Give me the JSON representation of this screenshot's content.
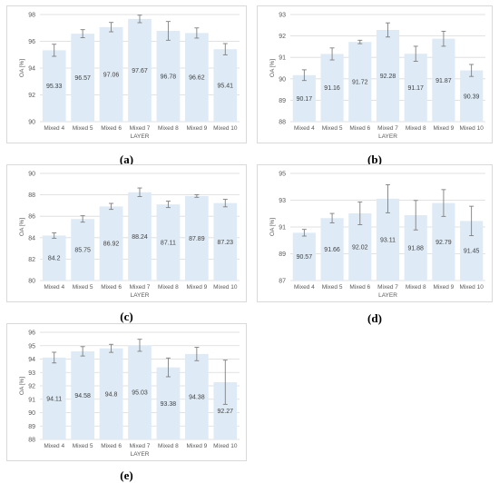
{
  "chart_data": [
    {
      "type": "bar",
      "panel_label": "(a)",
      "categories": [
        "Mixed 4",
        "Mixed 5",
        "Mixed 6",
        "Mixed 7",
        "Mixed 8",
        "Mixed 9",
        "Mixed 10"
      ],
      "values": [
        95.33,
        96.57,
        97.06,
        97.67,
        96.78,
        96.62,
        95.41
      ],
      "value_labels": [
        "95.33",
        "96.57",
        "97.06",
        "97.67",
        "96.78",
        "96.62",
        "95.41"
      ],
      "error": [
        0.45,
        0.3,
        0.35,
        0.28,
        0.7,
        0.38,
        0.42
      ],
      "ylim": [
        90,
        98
      ],
      "yticks": [
        90,
        92,
        94,
        96,
        98
      ],
      "ytick_labels": [
        "90",
        "92",
        "94",
        "96",
        "98"
      ],
      "xlabel": "LAYER",
      "ylabel": "OA [%]",
      "grid": true,
      "bar_color": "#deebf7"
    },
    {
      "type": "bar",
      "panel_label": "(b)",
      "categories": [
        "Mixed 4",
        "Mixed 5",
        "Mixed 6",
        "Mixed 7",
        "Mixed 8",
        "Mixed 9",
        "Mixed 10"
      ],
      "values": [
        90.17,
        91.16,
        91.72,
        92.28,
        91.17,
        91.87,
        90.39
      ],
      "value_labels": [
        "90.17",
        "91.16",
        "91.72",
        "92.28",
        "91.17",
        "91.87",
        "90.39"
      ],
      "error": [
        0.25,
        0.28,
        0.08,
        0.33,
        0.35,
        0.35,
        0.28
      ],
      "ylim": [
        88,
        93
      ],
      "yticks": [
        88,
        89,
        90,
        91,
        92,
        93
      ],
      "ytick_labels": [
        "88",
        "89",
        "90",
        "91",
        "92",
        "93"
      ],
      "xlabel": "LAYER",
      "ylabel": "OA [%]",
      "grid": true,
      "bar_color": "#deebf7"
    },
    {
      "type": "bar",
      "panel_label": "(c)",
      "categories": [
        "Mixed 4",
        "Mixed 5",
        "Mixed 6",
        "Mixed 7",
        "Mixed 8",
        "Mixed 9",
        "Mixed 10"
      ],
      "values": [
        84.2,
        85.75,
        86.92,
        88.24,
        87.11,
        87.89,
        87.23
      ],
      "value_labels": [
        "84.2",
        "85.75",
        "86.92",
        "88.24",
        "87.11",
        "87.89",
        "87.23"
      ],
      "error": [
        0.25,
        0.3,
        0.28,
        0.4,
        0.3,
        0.12,
        0.35
      ],
      "ylim": [
        80,
        90
      ],
      "yticks": [
        80,
        82,
        84,
        86,
        88,
        90
      ],
      "ytick_labels": [
        "80",
        "82",
        "84",
        "86",
        "88",
        "90"
      ],
      "xlabel": "LAYER",
      "ylabel": "OA [%]",
      "grid": true,
      "bar_color": "#deebf7"
    },
    {
      "type": "bar",
      "panel_label": "(d)",
      "categories": [
        "Mixed 4",
        "Mixed 5",
        "Mixed 6",
        "Mixed 7",
        "Mixed 8",
        "Mixed 9",
        "Mixed 10"
      ],
      "values": [
        90.57,
        91.66,
        92.02,
        93.11,
        91.88,
        92.79,
        91.45
      ],
      "value_labels": [
        "90.57",
        "91.66",
        "92.02",
        "93.11",
        "91.88",
        "92.79",
        "91.45"
      ],
      "error": [
        0.25,
        0.35,
        0.85,
        1.05,
        1.1,
        1.0,
        1.1
      ],
      "ylim": [
        87,
        95
      ],
      "yticks": [
        87,
        89,
        91,
        93,
        95
      ],
      "ytick_labels": [
        "87",
        "89",
        "91",
        "93",
        "95"
      ],
      "xlabel": "LAYER",
      "ylabel": "OA [%]",
      "grid": true,
      "bar_color": "#deebf7"
    },
    {
      "type": "bar",
      "panel_label": "(e)",
      "categories": [
        "Mixed 4",
        "Mixed 5",
        "Mixed 6",
        "Mixed 7",
        "Mixed 8",
        "Mixed 9",
        "Mixed 10"
      ],
      "values": [
        94.11,
        94.58,
        94.8,
        95.03,
        93.38,
        94.38,
        92.27
      ],
      "value_labels": [
        "94.11",
        "94.58",
        "94.8",
        "95.03",
        "93.38",
        "94.38",
        "92.27"
      ],
      "error": [
        0.4,
        0.35,
        0.3,
        0.45,
        0.7,
        0.5,
        1.65
      ],
      "ylim": [
        88,
        96
      ],
      "yticks": [
        88,
        89,
        90,
        91,
        92,
        93,
        94,
        95,
        96
      ],
      "ytick_labels": [
        "88",
        "89",
        "90",
        "91",
        "92",
        "93",
        "94",
        "95",
        "96"
      ],
      "xlabel": "LAYER",
      "ylabel": "OA [%]",
      "grid": true,
      "bar_color": "#deebf7"
    }
  ]
}
